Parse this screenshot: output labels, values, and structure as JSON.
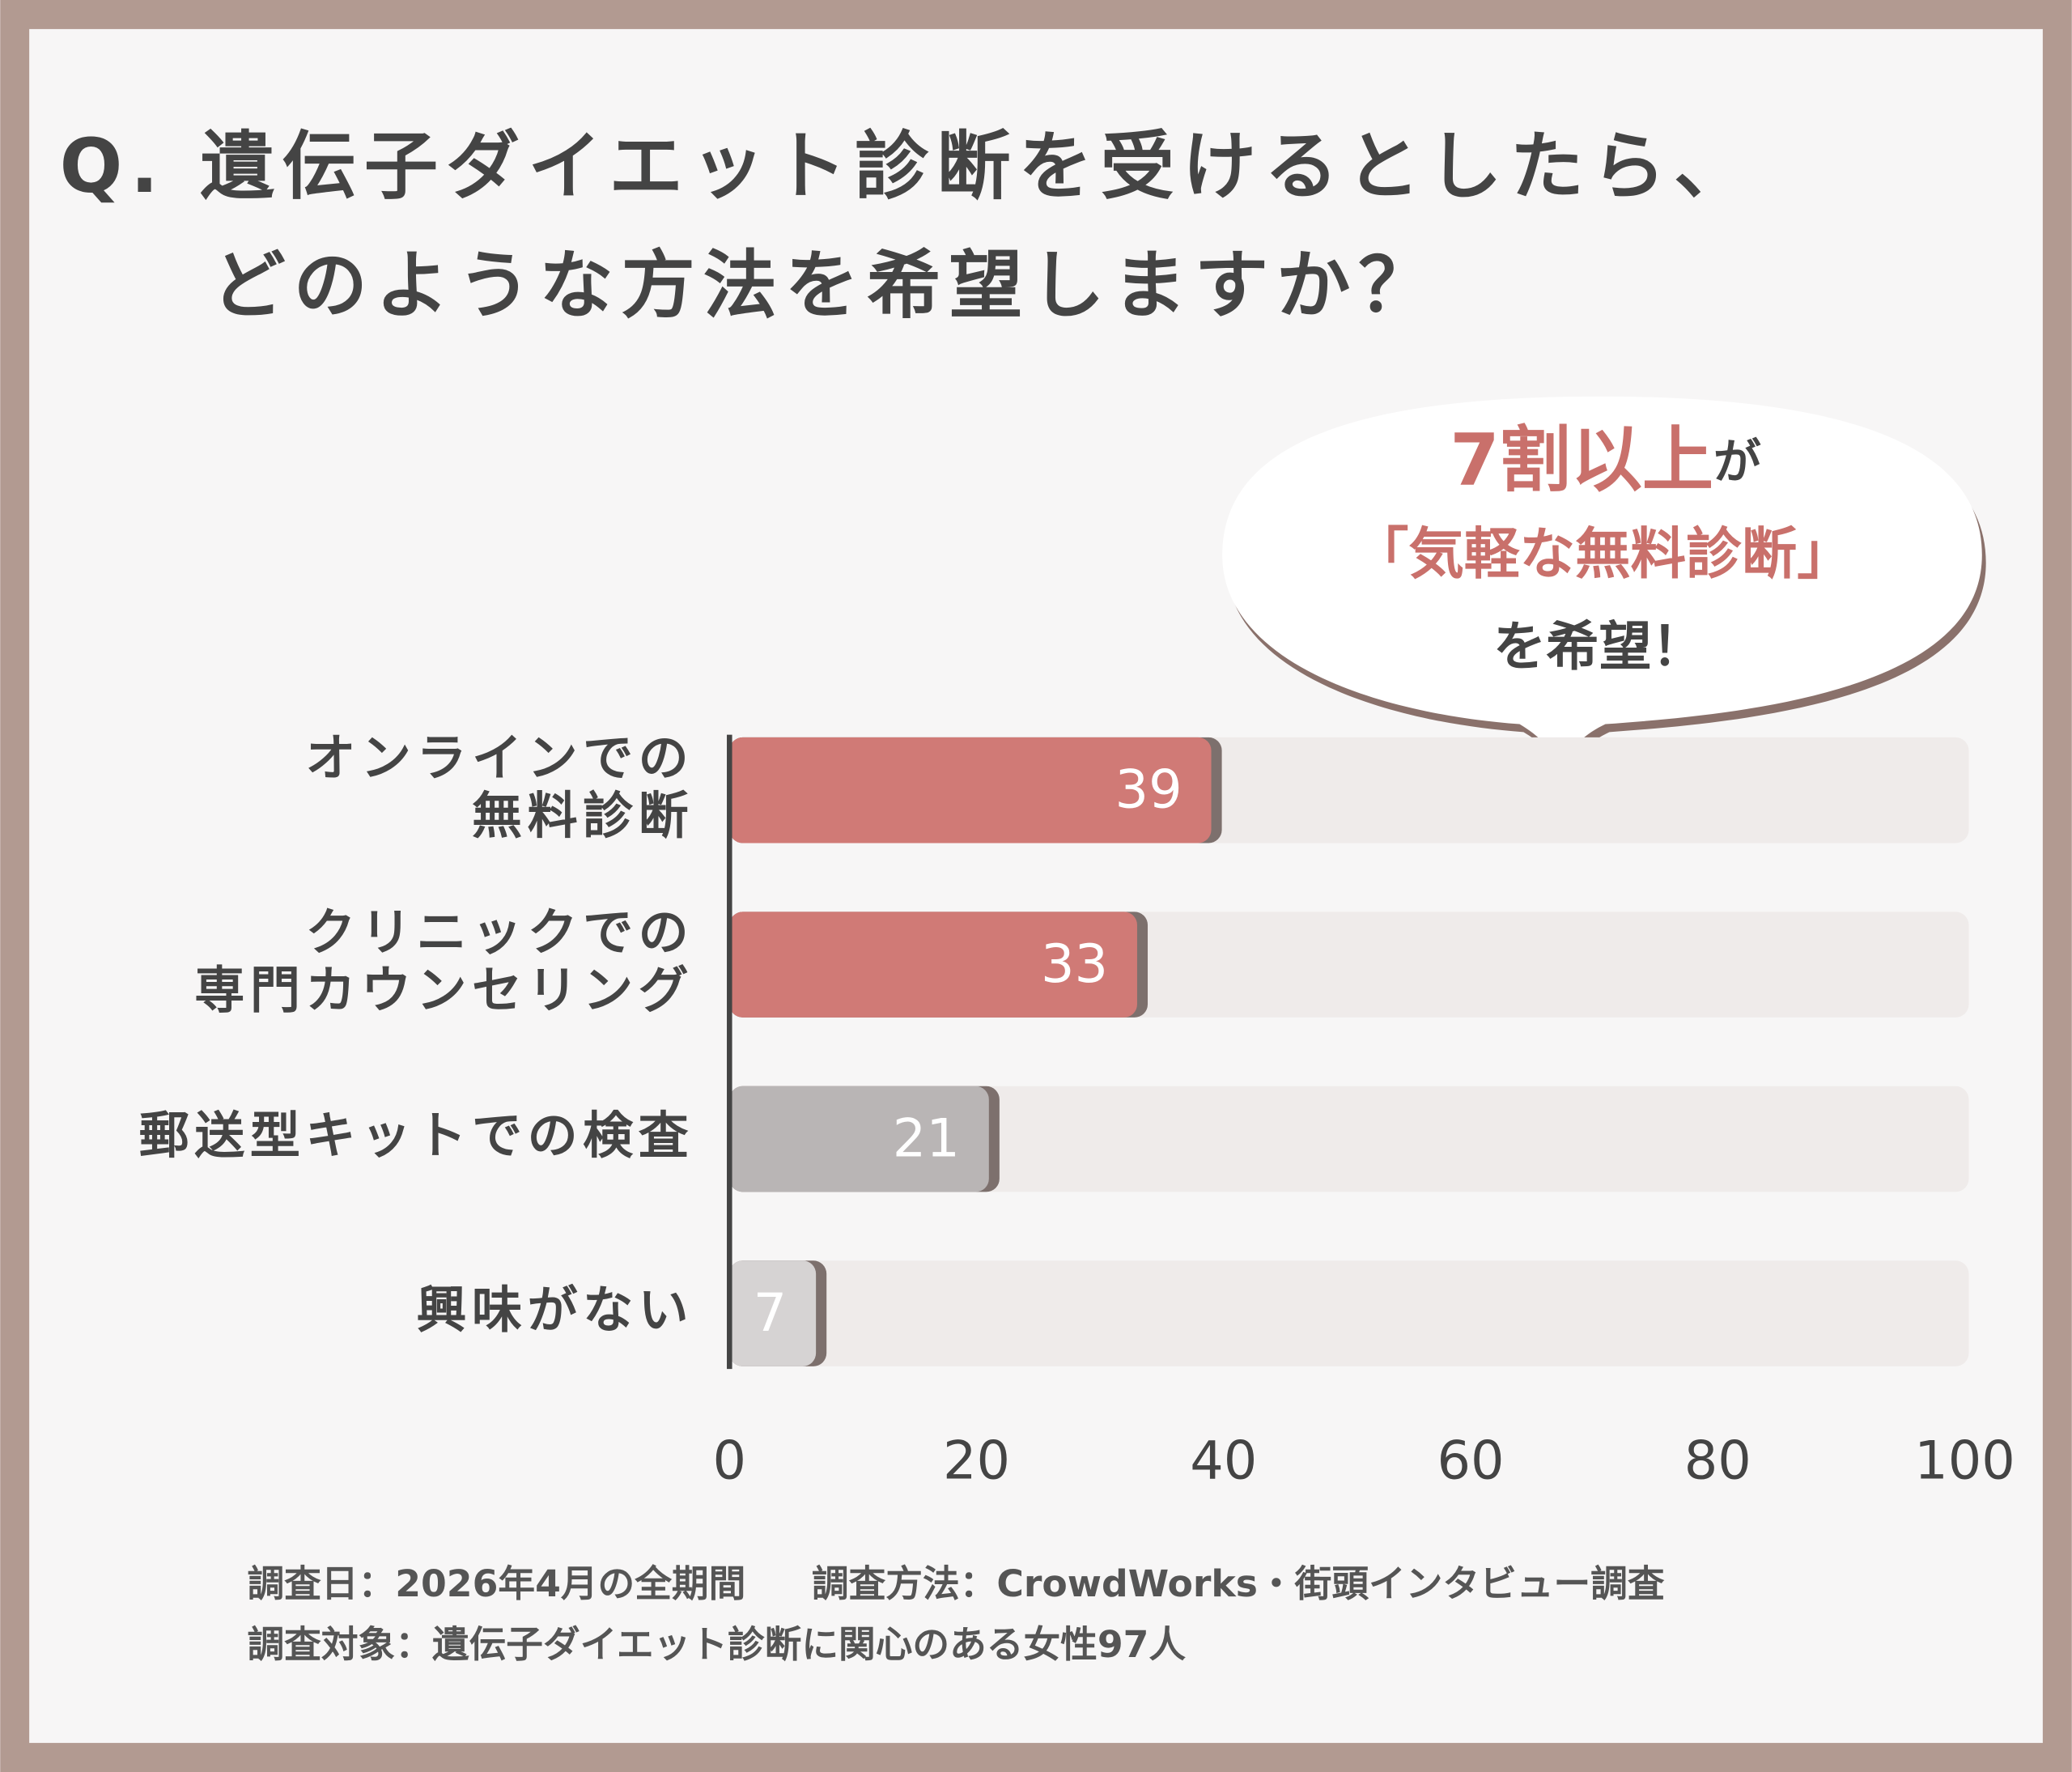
{
  "chart_data": {
    "type": "hbar",
    "title": [
      "Q. 遺伝子ダイエット診断を受けるとしたら、",
      "どのような方法を希望しますか？"
    ],
    "annotation": {
      "highlight": "7割以上",
      "after": "が",
      "quote": "「気軽な無料診断」",
      "tail": "を希望！"
    },
    "categories": [
      [
        "オンラインでの",
        "無料診断"
      ],
      [
        "クリニックでの",
        "専門カウンセリング"
      ],
      [
        "郵送型キットでの検査"
      ],
      [
        "興味がない"
      ]
    ],
    "values": [
      39,
      33,
      21,
      7
    ],
    "colors": [
      "#d07a76",
      "#d07a76",
      "#b9b5b5",
      "#d6d3d3"
    ],
    "xlim": [
      0,
      100
    ],
    "xticks": [
      0,
      20,
      40,
      60,
      80,
      100
    ],
    "footnotes": [
      [
        "調査日：2026年4月の全期間",
        "調査方法：CrowdWorks・街頭インタビュー調査"
      ],
      [
        "調査対象：遺伝子ダイエット診断に関心のある女性97人"
      ]
    ]
  }
}
